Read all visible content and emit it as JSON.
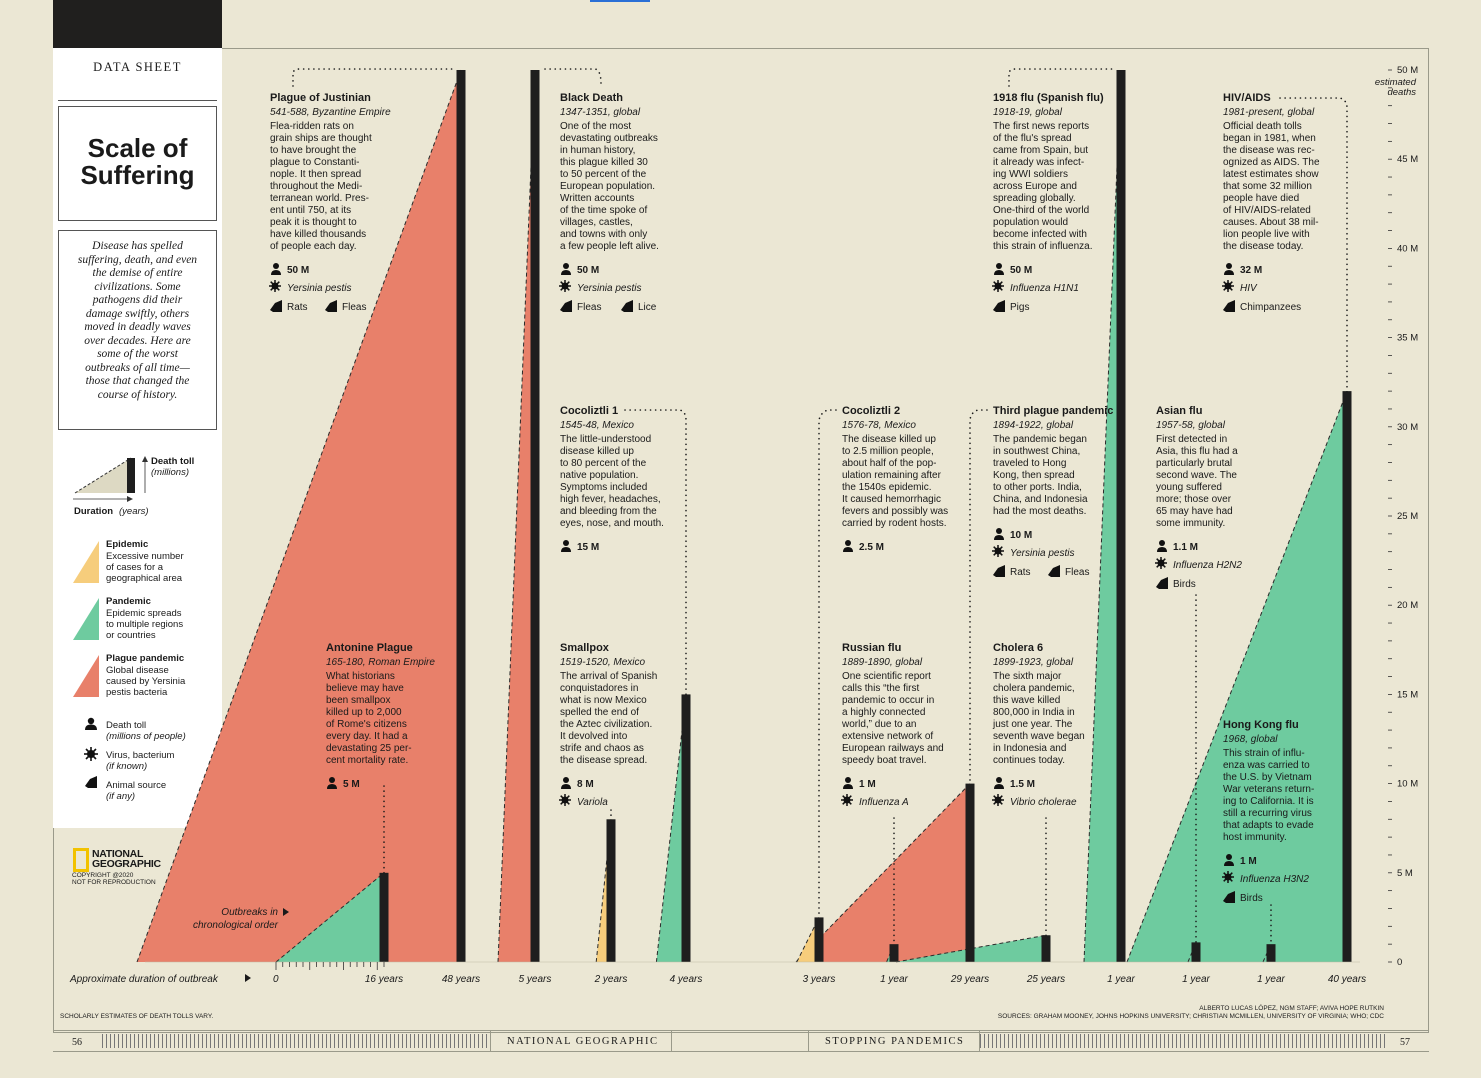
{
  "sidebar": {
    "section_label": "DATA SHEET",
    "title": "Scale of\nSuffering",
    "intro": "Disease has spelled suffering, death, and even the demise of entire civilizations. Some pathogens did their damage swiftly, others moved in deadly waves over decades. Here are some of the worst outbreaks of all time—those that changed the course of history.",
    "key_death_toll": "Death toll",
    "key_death_toll_unit": "(millions)",
    "key_duration": "Duration",
    "key_duration_unit": "(years)",
    "legend": [
      {
        "label": "Epidemic",
        "desc": "Excessive number\nof cases for a\ngeographical area",
        "color": "#f6cd7c"
      },
      {
        "label": "Pandemic",
        "desc": "Epidemic spreads\nto multiple regions\nor countries",
        "color": "#6ecb9f"
      },
      {
        "label": "Plague pandemic",
        "desc": "Global disease\ncaused by Yersinia\npestis bacteria",
        "color": "#e8806a"
      }
    ],
    "icon_key": [
      {
        "label": "Death toll",
        "sub": "(millions of people)",
        "icon": "person-icon"
      },
      {
        "label": "Virus, bacterium",
        "sub": "(if known)",
        "icon": "virus-icon"
      },
      {
        "label": "Animal source",
        "sub": "(if any)",
        "icon": "animal-icon"
      }
    ],
    "brand": "NATIONAL\nGEOGRAPHIC",
    "copyright": "COPYRIGHT @2020\nNOT FOR REPRODUCTION"
  },
  "chart_data": {
    "type": "area",
    "title": "Scale of Suffering",
    "xlabel": "Approximate duration of outbreak",
    "x_note": "Outbreaks in chronological order",
    "ylabel": "estimated deaths",
    "y_unit": "M",
    "ylim": [
      0,
      50
    ],
    "y_ticks": [
      0,
      5,
      10,
      15,
      20,
      25,
      30,
      35,
      40,
      45,
      50
    ],
    "y_top_label": "50 M",
    "y_top_sub": "estimated\ndeaths",
    "duration_scale_start": "0",
    "outbreaks": [
      {
        "name": "Plague of Justinian",
        "dates": "541-588, Byzantine Empire",
        "duration_years": 48,
        "duration_label": "48 years",
        "deaths_m": 50,
        "deaths_label": "50 M",
        "type": "plague",
        "pathogen": "Yersinia pestis",
        "animals": [
          "Rats",
          "Fleas"
        ],
        "desc": "Flea-ridden rats on\ngrain ships are thought\nto have brought the\nplague to Constanti-\nnople. It then spread\nthroughout the Medi-\nterranean world. Pres-\nent until 750, at its\npeak it is thought to\nhave killed thousands\nof people each day."
      },
      {
        "name": "Antonine Plague",
        "dates": "165-180, Roman Empire",
        "duration_years": 16,
        "duration_label": "16 years",
        "deaths_m": 5,
        "deaths_label": "5 M",
        "type": "pandemic",
        "pathogen": "",
        "animals": [],
        "desc": "What historians\nbelieve may have\nbeen smallpox\nkilled up to 2,000\nof Rome's citizens\nevery day. It had a\ndevastating 25 per-\ncent mortality rate."
      },
      {
        "name": "Black Death",
        "dates": "1347-1351, global",
        "duration_years": 5,
        "duration_label": "5 years",
        "deaths_m": 50,
        "deaths_label": "50 M",
        "type": "plague",
        "pathogen": "Yersinia pestis",
        "animals": [
          "Fleas",
          "Lice"
        ],
        "desc": "One of the most\ndevastating outbreaks\nin human history,\nthis plague killed 30\nto 50 percent of the\nEuropean population.\nWritten accounts\nof the time spoke of\nvillages, castles,\nand towns with only\na few people left alive."
      },
      {
        "name": "Smallpox",
        "dates": "1519-1520, Mexico",
        "duration_years": 2,
        "duration_label": "2 years",
        "deaths_m": 8,
        "deaths_label": "8 M",
        "type": "epidemic",
        "pathogen": "Variola",
        "animals": [],
        "desc": "The arrival of Spanish\nconquistadores in\nwhat is now Mexico\nspelled the end of\nthe Aztec civilization.\nIt devolved into\nstrife and chaos as\nthe disease spread."
      },
      {
        "name": "Cocoliztli 1",
        "dates": "1545-48, Mexico",
        "duration_years": 4,
        "duration_label": "4 years",
        "deaths_m": 15,
        "deaths_label": "15 M",
        "type": "pandemic",
        "pathogen": "",
        "animals": [],
        "desc": "The little-understood\ndisease killed up\nto 80 percent of the\nnative population.\nSymptoms included\nhigh fever, headaches,\nand bleeding from the\neyes, nose, and mouth."
      },
      {
        "name": "Cocoliztli 2",
        "dates": "1576-78, Mexico",
        "duration_years": 3,
        "duration_label": "3 years",
        "deaths_m": 2.5,
        "deaths_label": "2.5 M",
        "type": "epidemic",
        "pathogen": "",
        "animals": [],
        "desc": "The disease killed up\nto 2.5 million people,\nabout half of the pop-\nulation remaining after\nthe 1540s epidemic.\nIt caused hemorrhagic\nfevers and possibly was\ncarried by rodent hosts."
      },
      {
        "name": "Russian flu",
        "dates": "1889-1890, global",
        "duration_years": 1,
        "duration_label": "1 year",
        "deaths_m": 1,
        "deaths_label": "1 M",
        "type": "pandemic",
        "pathogen": "Influenza A",
        "animals": [],
        "desc": "One scientific report\ncalls this “the first\npandemic to occur in\na highly connected\nworld,” due to an\nextensive network of\nEuropean railways and\nspeedy boat travel."
      },
      {
        "name": "Third plague pandemic",
        "dates": "1894-1922, global",
        "duration_years": 29,
        "duration_label": "29 years",
        "deaths_m": 10,
        "deaths_label": "10 M",
        "type": "plague",
        "pathogen": "Yersinia pestis",
        "animals": [
          "Rats",
          "Fleas"
        ],
        "desc": "The pandemic began\nin southwest China,\ntraveled to Hong\nKong, then spread\nto other ports. India,\nChina, and Indonesia\nhad the most deaths."
      },
      {
        "name": "Cholera 6",
        "dates": "1899-1923, global",
        "duration_years": 25,
        "duration_label": "25 years",
        "deaths_m": 1.5,
        "deaths_label": "1.5 M",
        "type": "pandemic",
        "pathogen": "Vibrio cholerae",
        "animals": [],
        "desc": "The sixth major\ncholera pandemic,\nthis wave killed\n800,000 in India in\njust one year. The\nseventh wave began\nin Indonesia and\ncontinues today."
      },
      {
        "name": "1918 flu (Spanish flu)",
        "dates": "1918-19, global",
        "duration_years": 1,
        "duration_label": "1 year",
        "deaths_m": 50,
        "deaths_label": "50 M",
        "type": "pandemic",
        "pathogen": "Influenza H1N1",
        "animals": [
          "Pigs"
        ],
        "desc": "The first news reports\nof the flu's spread\ncame from Spain, but\nit already was infect-\ning WWI soldiers\nacross Europe and\nspreading globally.\nOne-third of the world\npopulation would\nbecome infected with\nthis strain of influenza."
      },
      {
        "name": "Asian flu",
        "dates": "1957-58, global",
        "duration_years": 1,
        "duration_label": "1 year",
        "deaths_m": 1.1,
        "deaths_label": "1.1 M",
        "type": "pandemic",
        "pathogen": "Influenza H2N2",
        "animals": [
          "Birds"
        ],
        "desc": "First detected in\nAsia, this flu had a\nparticularly brutal\nsecond wave. The\nyoung suffered\nmore; those over\n65 may have had\nsome immunity."
      },
      {
        "name": "Hong Kong flu",
        "dates": "1968, global",
        "duration_years": 1,
        "duration_label": "1 year",
        "deaths_m": 1,
        "deaths_label": "1 M",
        "type": "pandemic",
        "pathogen": "Influenza H3N2",
        "animals": [
          "Birds"
        ],
        "desc": "This strain of influ-\nenza was carried to\nthe U.S. by Vietnam\nWar veterans return-\ning to California. It is\nstill a recurring virus\nthat adapts to evade\nhost immunity."
      },
      {
        "name": "HIV/AIDS",
        "dates": "1981-present, global",
        "duration_years": 40,
        "duration_label": "40 years",
        "deaths_m": 32,
        "deaths_label": "32 M",
        "type": "pandemic",
        "pathogen": "HIV",
        "animals": [
          "Chimpanzees"
        ],
        "desc": "Official death tolls\nbegan in 1981, when\nthe disease was rec-\nognized as AIDS. The\nlatest estimates show\nthat some 32 million\npeople have died\nof HIV/AIDS-related\ncauses. About 38 mil-\nlion people live with\nthe disease today."
      }
    ],
    "colors": {
      "plague": "#e8806a",
      "pandemic": "#6ecb9f",
      "epidemic": "#f6cd7c",
      "bar": "#1e1e1e"
    }
  },
  "footer": {
    "note": "SCHOLARLY ESTIMATES OF DEATH TOLLS VARY.",
    "credit": "ALBERTO LUCAS LÓPEZ, NGM STAFF; AVIVA HOPE RUTKIN",
    "sources": "SOURCES: GRAHAM MOONEY, JOHNS HOPKINS UNIVERSITY; CHRISTIAN MCMILLEN, UNIVERSITY OF VIRGINIA; WHO; CDC",
    "page_left": "56",
    "page_right": "57",
    "runhead_left": "NATIONAL GEOGRAPHIC",
    "runhead_right": "STOPPING PANDEMICS"
  }
}
